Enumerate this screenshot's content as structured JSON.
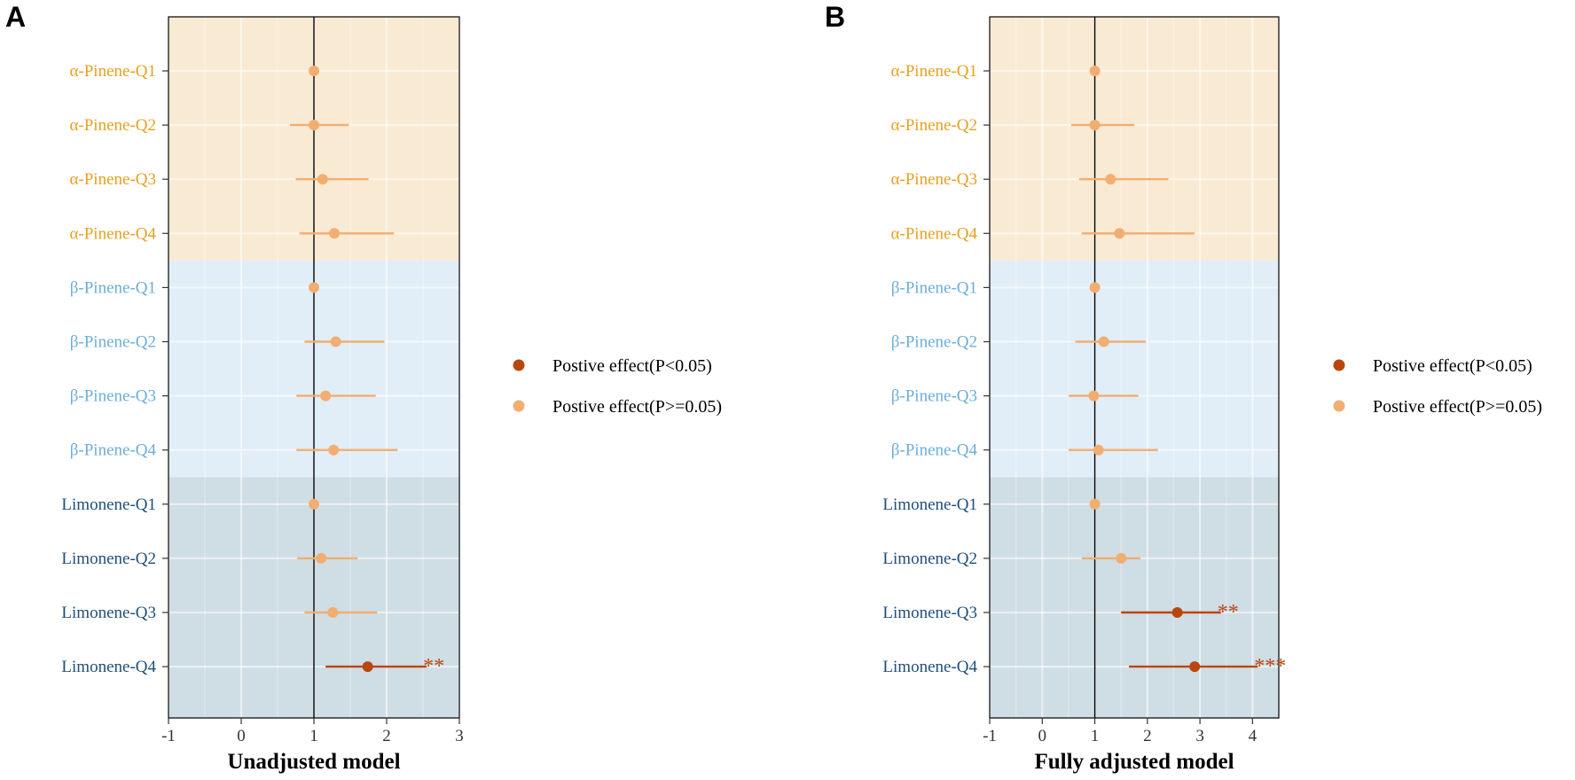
{
  "colors": {
    "significant": "#B8470F",
    "nonsignificant": "#F2AE72",
    "alpha_label": "#E8A020",
    "beta_label": "#6BAED6",
    "limonene_label": "#1F4E79",
    "alpha_band": "#F9EAD3",
    "beta_band": "#E1EEF7",
    "limonene_band": "#CFDDE4"
  },
  "legend": {
    "items": [
      {
        "label": "Postive effect(P<0.05)",
        "color": "#B8470F"
      },
      {
        "label": "Postive effect(P>=0.05)",
        "color": "#F2AE72"
      }
    ]
  },
  "chart_data": [
    {
      "type": "forest",
      "panel_letter": "A",
      "title": "",
      "xlabel": "Unadjusted model",
      "xlim": [
        -1,
        3
      ],
      "xticks": [
        "-1",
        "0",
        "1",
        "2",
        "3"
      ],
      "reference_line": 1,
      "groups": [
        {
          "name": "α-Pinene",
          "color_key": "alpha"
        },
        {
          "name": "β-Pinene",
          "color_key": "beta"
        },
        {
          "name": "Limonene",
          "color_key": "limonene"
        }
      ],
      "rows": [
        {
          "label": "α-Pinene-Q1",
          "group": "alpha",
          "est": 1.0,
          "lo": 1.0,
          "hi": 1.0,
          "sig": false,
          "stars": ""
        },
        {
          "label": "α-Pinene-Q2",
          "group": "alpha",
          "est": 1.0,
          "lo": 0.67,
          "hi": 1.48,
          "sig": false,
          "stars": ""
        },
        {
          "label": "α-Pinene-Q3",
          "group": "alpha",
          "est": 1.12,
          "lo": 0.75,
          "hi": 1.75,
          "sig": false,
          "stars": ""
        },
        {
          "label": "α-Pinene-Q4",
          "group": "alpha",
          "est": 1.28,
          "lo": 0.8,
          "hi": 2.1,
          "sig": false,
          "stars": ""
        },
        {
          "label": "β-Pinene-Q1",
          "group": "beta",
          "est": 1.0,
          "lo": 1.0,
          "hi": 1.0,
          "sig": false,
          "stars": ""
        },
        {
          "label": "β-Pinene-Q2",
          "group": "beta",
          "est": 1.3,
          "lo": 0.87,
          "hi": 1.97,
          "sig": false,
          "stars": ""
        },
        {
          "label": "β-Pinene-Q3",
          "group": "beta",
          "est": 1.16,
          "lo": 0.76,
          "hi": 1.85,
          "sig": false,
          "stars": ""
        },
        {
          "label": "β-Pinene-Q4",
          "group": "beta",
          "est": 1.27,
          "lo": 0.76,
          "hi": 2.15,
          "sig": false,
          "stars": ""
        },
        {
          "label": "Limonene-Q1",
          "group": "limonene",
          "est": 1.0,
          "lo": 1.0,
          "hi": 1.0,
          "sig": false,
          "stars": ""
        },
        {
          "label": "Limonene-Q2",
          "group": "limonene",
          "est": 1.1,
          "lo": 0.77,
          "hi": 1.6,
          "sig": false,
          "stars": ""
        },
        {
          "label": "Limonene-Q3",
          "group": "limonene",
          "est": 1.26,
          "lo": 0.87,
          "hi": 1.87,
          "sig": false,
          "stars": ""
        },
        {
          "label": "Limonene-Q4",
          "group": "limonene",
          "est": 1.74,
          "lo": 1.16,
          "hi": 2.55,
          "sig": true,
          "stars": "**"
        }
      ]
    },
    {
      "type": "forest",
      "panel_letter": "B",
      "title": "",
      "xlabel": "Fully adjusted model",
      "xlim": [
        -1,
        4.5
      ],
      "xticks": [
        "-1",
        "0",
        "1",
        "2",
        "3",
        "4"
      ],
      "reference_line": 1,
      "groups": [
        {
          "name": "α-Pinene",
          "color_key": "alpha"
        },
        {
          "name": "β-Pinene",
          "color_key": "beta"
        },
        {
          "name": "Limonene",
          "color_key": "limonene"
        }
      ],
      "rows": [
        {
          "label": "α-Pinene-Q1",
          "group": "alpha",
          "est": 1.0,
          "lo": 1.0,
          "hi": 1.0,
          "sig": false,
          "stars": ""
        },
        {
          "label": "α-Pinene-Q2",
          "group": "alpha",
          "est": 1.0,
          "lo": 0.55,
          "hi": 1.75,
          "sig": false,
          "stars": ""
        },
        {
          "label": "α-Pinene-Q3",
          "group": "alpha",
          "est": 1.3,
          "lo": 0.7,
          "hi": 2.4,
          "sig": false,
          "stars": ""
        },
        {
          "label": "α-Pinene-Q4",
          "group": "alpha",
          "est": 1.47,
          "lo": 0.75,
          "hi": 2.9,
          "sig": false,
          "stars": ""
        },
        {
          "label": "β-Pinene-Q1",
          "group": "beta",
          "est": 1.0,
          "lo": 1.0,
          "hi": 1.0,
          "sig": false,
          "stars": ""
        },
        {
          "label": "β-Pinene-Q2",
          "group": "beta",
          "est": 1.17,
          "lo": 0.63,
          "hi": 1.97,
          "sig": false,
          "stars": ""
        },
        {
          "label": "β-Pinene-Q3",
          "group": "beta",
          "est": 0.98,
          "lo": 0.5,
          "hi": 1.83,
          "sig": false,
          "stars": ""
        },
        {
          "label": "β-Pinene-Q4",
          "group": "beta",
          "est": 1.07,
          "lo": 0.5,
          "hi": 2.2,
          "sig": false,
          "stars": ""
        },
        {
          "label": "Limonene-Q1",
          "group": "limonene",
          "est": 1.0,
          "lo": 1.0,
          "hi": 1.0,
          "sig": false,
          "stars": ""
        },
        {
          "label": "Limonene-Q2",
          "group": "limonene",
          "est": 1.5,
          "lo": 0.75,
          "hi": 1.87,
          "sig": false,
          "stars": ""
        },
        {
          "label": "Limonene-Q3",
          "group": "limonene",
          "est": 2.57,
          "lo": 1.5,
          "hi": 3.4,
          "sig": true,
          "stars": "**"
        },
        {
          "label": "Limonene-Q4",
          "group": "limonene",
          "est": 2.9,
          "lo": 1.65,
          "hi": 4.1,
          "sig": true,
          "stars": "***"
        }
      ]
    }
  ]
}
